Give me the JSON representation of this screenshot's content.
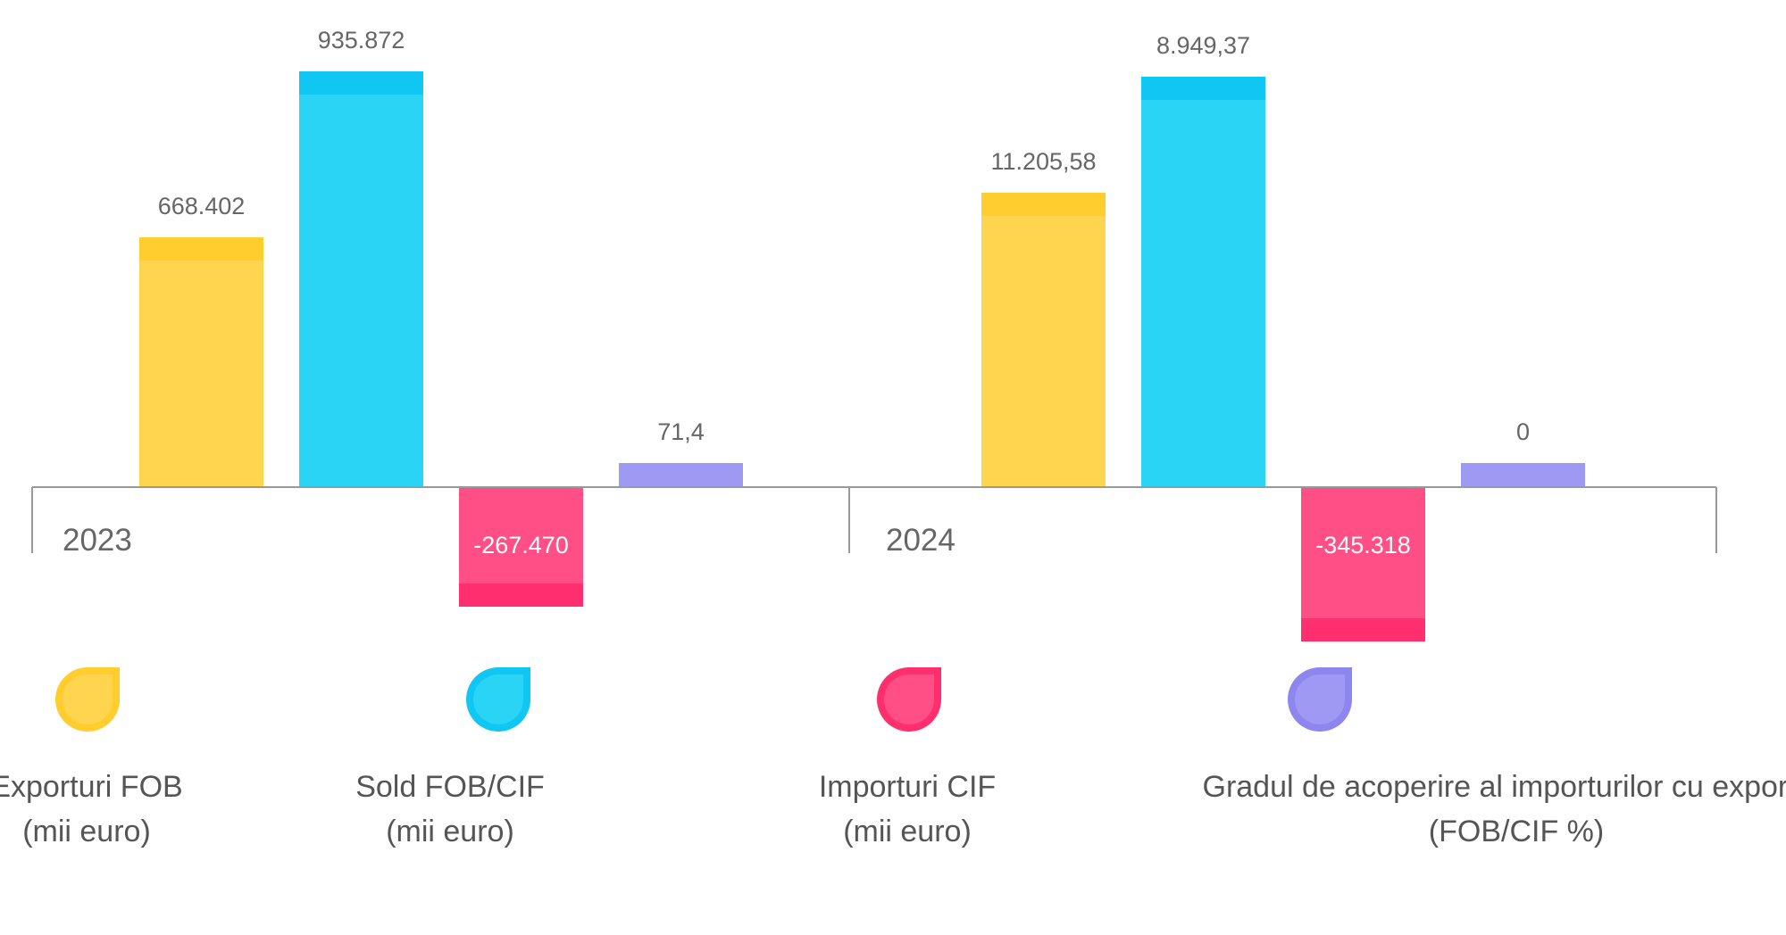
{
  "chart_data": {
    "type": "bar",
    "groups": [
      {
        "label": "2023",
        "bars": [
          {
            "series": "Exporturi FOB (mii euro)",
            "value": 668402,
            "display": "668.402"
          },
          {
            "series": "Sold FOB/CIF (mii euro)",
            "value": 935872,
            "display": "935.872"
          },
          {
            "series": "Importuri CIF (mii euro)",
            "value": -267470,
            "display": "-267.470"
          },
          {
            "series": "Gradul de acoperire al importurilor cu exporturi (FOB/CIF %)",
            "value": 71.4,
            "display": "71,4"
          }
        ]
      },
      {
        "label": "2024",
        "bars": [
          {
            "series": "Exporturi FOB (mii euro)",
            "value": 11205.58,
            "display": "11.205,58"
          },
          {
            "series": "Sold FOB/CIF (mii euro)",
            "value": 8949.37,
            "display": "8.949,37"
          },
          {
            "series": "Importuri CIF (mii euro)",
            "value": -345318,
            "display": "-345.318"
          },
          {
            "series": "Gradul de acoperire al importurilor cu exporturi (FOB/CIF %)",
            "value": 0,
            "display": "0"
          }
        ]
      }
    ],
    "legend": [
      {
        "line1": "Exporturi FOB",
        "line2": "(mii euro)",
        "color": "#FFD54F",
        "accent": "#FFCE2E"
      },
      {
        "line1": "Sold FOB/CIF",
        "line2": "(mii euro)",
        "color": "#29D4F5",
        "accent": "#10C6F2"
      },
      {
        "line1": "Importuri CIF",
        "line2": "(mii euro)",
        "color": "#FF4F86",
        "accent": "#FF2E6E"
      },
      {
        "line1": "Gradul de acoperire al importurilor cu exporturi",
        "line2": "(FOB/CIF %)",
        "color": "#9E99F2",
        "accent": "#8C86EE"
      }
    ],
    "legend_position": "bottom",
    "axis_color": "#999999",
    "grid": false
  }
}
